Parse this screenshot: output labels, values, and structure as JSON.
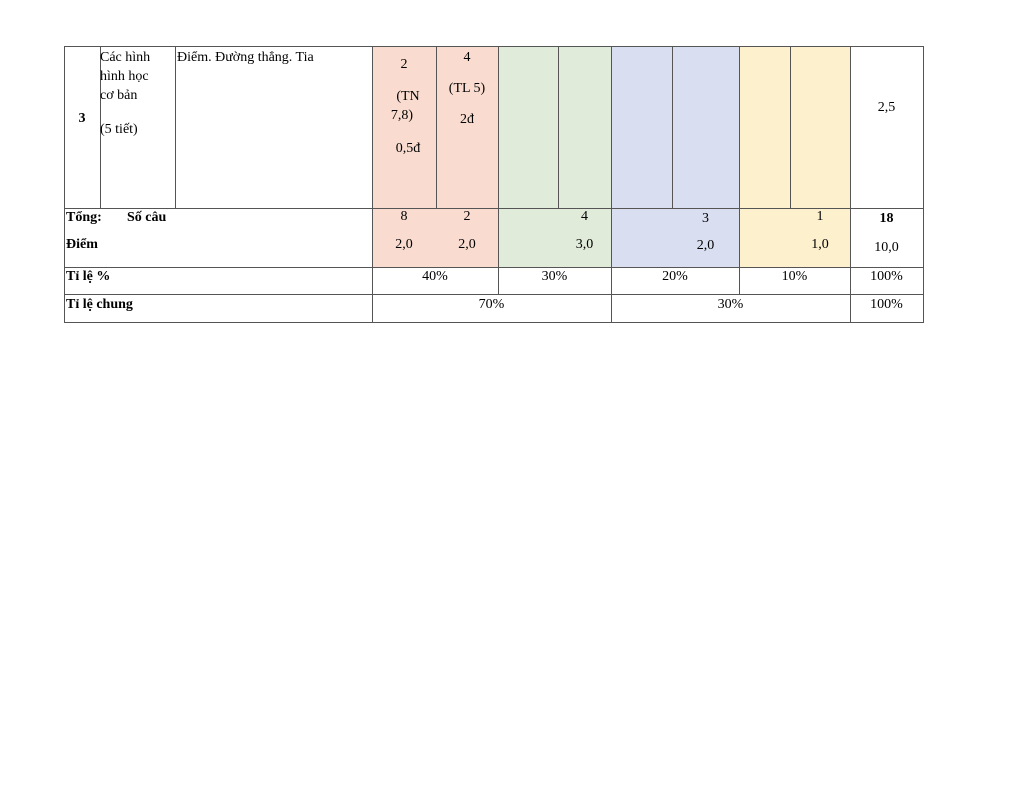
{
  "colors": {
    "pink": "#f9dccf",
    "green": "#e0ecd9",
    "blue": "#d9dff0",
    "yellow": "#fdf0cd",
    "border": "#555555"
  },
  "row3": {
    "stt": "3",
    "topic": [
      "Các hình",
      "hình học",
      "cơ bản",
      "(5 tiết)"
    ],
    "content": "Điểm. Đường thẳng. Tia",
    "nb_tn": [
      "2",
      "(TN",
      "7,8)",
      "0,5đ"
    ],
    "nb_tl": [
      "4",
      "(TL 5)",
      "2đ"
    ],
    "total": "2,5"
  },
  "tong": {
    "label1": "Tổng:",
    "label2": "Số câu",
    "label3": "Điểm",
    "cau": [
      "8",
      "2",
      "4",
      "3",
      "1",
      "18"
    ],
    "diem": [
      "2,0",
      "2,0",
      "3,0",
      "2,0",
      "1,0",
      "10,0"
    ]
  },
  "tile": {
    "label": "Tỉ lệ %",
    "values": [
      "40%",
      "30%",
      "20%",
      "10%",
      "100%"
    ]
  },
  "tilechung": {
    "label": "Tỉ lệ chung",
    "values": [
      "70%",
      "30%",
      "100%"
    ]
  }
}
